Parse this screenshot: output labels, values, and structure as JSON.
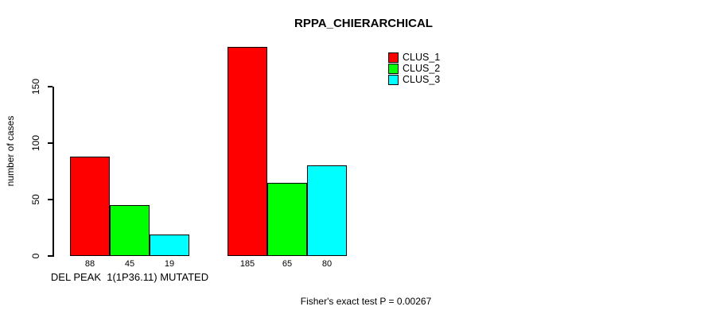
{
  "chart_data": {
    "type": "bar",
    "title": "RPPA_CHIERARCHICAL",
    "ylabel": "number of cases",
    "xlabel": "",
    "yticks": [
      0,
      50,
      100,
      150
    ],
    "ylim": [
      0,
      186
    ],
    "grid": false,
    "legend_position": "top-right",
    "categories": [
      "DEL PEAK  1(1P36.11) MUTATED",
      ""
    ],
    "series": [
      {
        "name": "CLUS_1",
        "color": "#ff0000",
        "values": [
          88,
          185
        ]
      },
      {
        "name": "CLUS_2",
        "color": "#00ff00",
        "values": [
          45,
          65
        ]
      },
      {
        "name": "CLUS_3",
        "color": "#00ffff",
        "values": [
          19,
          80
        ]
      }
    ],
    "bar_value_labels": [
      [
        88,
        45,
        19
      ],
      [
        185,
        65,
        80
      ]
    ],
    "annotation": "Fisher's exact test P = 0.00267"
  }
}
